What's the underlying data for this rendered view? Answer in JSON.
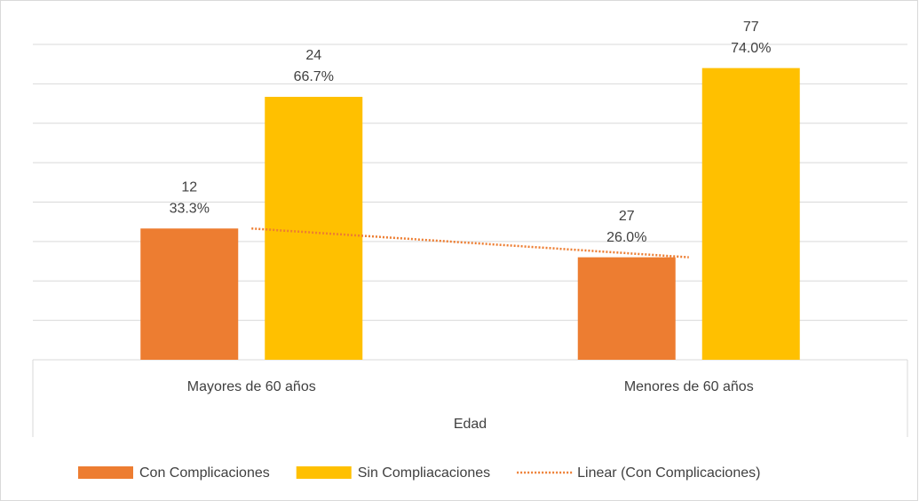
{
  "chart_data": {
    "type": "bar",
    "categories": [
      "Mayores de 60 años",
      "Menores de 60 años"
    ],
    "x_label": "Edad",
    "series": [
      {
        "name": "Con Complicaciones",
        "color": "#ed7d31",
        "values": [
          33.3,
          26.0
        ],
        "value_labels": [
          "33.3%",
          "26.0%"
        ],
        "counts": [
          12,
          27
        ]
      },
      {
        "name": "Sin Compliacaciones",
        "color": "#ffc000",
        "values": [
          66.7,
          74.0
        ],
        "value_labels": [
          "66.7%",
          "74.0%"
        ],
        "counts": [
          24,
          77
        ]
      }
    ],
    "trendline": {
      "name": "Linear (Con Complicaciones)",
      "color": "#ed7d31"
    },
    "ylim": [
      0,
      80
    ],
    "yticks": [
      0,
      10,
      20,
      30,
      40,
      50,
      60,
      70,
      80
    ],
    "grid": true
  }
}
